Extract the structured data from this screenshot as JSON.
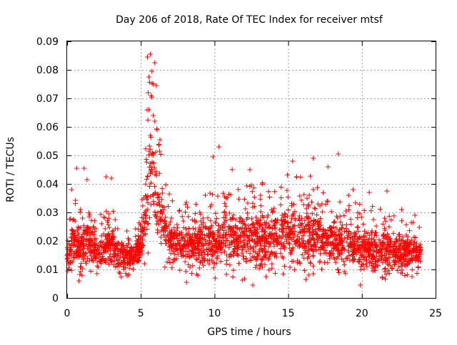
{
  "chart_data": {
    "type": "scatter",
    "title": "Day 206 of 2018, Rate Of TEC Index for receiver mtsf",
    "xlabel": "GPS time / hours",
    "ylabel": "ROTI / TECUs",
    "xlim": [
      0,
      25
    ],
    "ylim": [
      0,
      0.09
    ],
    "x_ticks": [
      "0",
      "5",
      "10",
      "15",
      "20",
      "25"
    ],
    "y_ticks": [
      "0",
      "0.01",
      "0.02",
      "0.03",
      "0.04",
      "0.05",
      "0.06",
      "0.07",
      "0.08",
      "0.09"
    ],
    "grid": true,
    "marker": "plus",
    "series": [
      {
        "color": "#ff0000",
        "envelope": [
          {
            "x": 0.0,
            "low": 0.009,
            "high": 0.024
          },
          {
            "x": 0.5,
            "low": 0.008,
            "high": 0.038
          },
          {
            "x": 1.0,
            "low": 0.007,
            "high": 0.03
          },
          {
            "x": 1.5,
            "low": 0.009,
            "high": 0.04
          },
          {
            "x": 2.0,
            "low": 0.008,
            "high": 0.026
          },
          {
            "x": 2.5,
            "low": 0.008,
            "high": 0.035
          },
          {
            "x": 3.0,
            "low": 0.008,
            "high": 0.033
          },
          {
            "x": 3.5,
            "low": 0.007,
            "high": 0.026
          },
          {
            "x": 4.0,
            "low": 0.007,
            "high": 0.024
          },
          {
            "x": 4.5,
            "low": 0.009,
            "high": 0.024
          },
          {
            "x": 5.0,
            "low": 0.01,
            "high": 0.03
          },
          {
            "x": 5.5,
            "low": 0.012,
            "high": 0.075
          },
          {
            "x": 5.8,
            "low": 0.018,
            "high": 0.085
          },
          {
            "x": 6.2,
            "low": 0.014,
            "high": 0.06
          },
          {
            "x": 6.7,
            "low": 0.01,
            "high": 0.04
          },
          {
            "x": 7.5,
            "low": 0.009,
            "high": 0.034
          },
          {
            "x": 8.5,
            "low": 0.008,
            "high": 0.034
          },
          {
            "x": 10.0,
            "low": 0.007,
            "high": 0.04
          },
          {
            "x": 11.5,
            "low": 0.007,
            "high": 0.04
          },
          {
            "x": 12.5,
            "low": 0.005,
            "high": 0.042
          },
          {
            "x": 13.5,
            "low": 0.007,
            "high": 0.04
          },
          {
            "x": 15.0,
            "low": 0.007,
            "high": 0.044
          },
          {
            "x": 16.0,
            "low": 0.008,
            "high": 0.044
          },
          {
            "x": 17.0,
            "low": 0.008,
            "high": 0.042
          },
          {
            "x": 18.0,
            "low": 0.009,
            "high": 0.036
          },
          {
            "x": 19.0,
            "low": 0.008,
            "high": 0.034
          },
          {
            "x": 20.0,
            "low": 0.007,
            "high": 0.034
          },
          {
            "x": 21.0,
            "low": 0.006,
            "high": 0.032
          },
          {
            "x": 22.0,
            "low": 0.007,
            "high": 0.03
          },
          {
            "x": 23.0,
            "low": 0.007,
            "high": 0.028
          },
          {
            "x": 24.0,
            "low": 0.008,
            "high": 0.028
          }
        ],
        "points": [
          [
            5.45,
            0.0845
          ],
          [
            5.65,
            0.0855
          ],
          [
            5.95,
            0.0825
          ],
          [
            5.75,
            0.0795
          ],
          [
            5.55,
            0.0775
          ],
          [
            5.85,
            0.075
          ],
          [
            6.05,
            0.0745
          ],
          [
            5.5,
            0.072
          ],
          [
            5.7,
            0.071
          ],
          [
            5.55,
            0.066
          ],
          [
            5.85,
            0.064
          ],
          [
            5.95,
            0.062
          ],
          [
            6.1,
            0.059
          ],
          [
            5.65,
            0.057
          ],
          [
            6.3,
            0.0555
          ],
          [
            10.3,
            0.053
          ],
          [
            9.9,
            0.0495
          ],
          [
            18.4,
            0.0505
          ],
          [
            16.7,
            0.049
          ],
          [
            15.3,
            0.048
          ],
          [
            17.7,
            0.046
          ],
          [
            1.15,
            0.0455
          ],
          [
            0.65,
            0.0455
          ],
          [
            11.2,
            0.045
          ],
          [
            12.4,
            0.045
          ],
          [
            2.65,
            0.0425
          ],
          [
            3.0,
            0.042
          ],
          [
            0.3,
            0.038
          ],
          [
            1.35,
            0.0415
          ],
          [
            21.7,
            0.0375
          ],
          [
            20.5,
            0.037
          ],
          [
            19.1,
            0.036
          ],
          [
            19.4,
            0.038
          ],
          [
            22.7,
            0.031
          ],
          [
            23.6,
            0.029
          ],
          [
            8.1,
            0.0055
          ],
          [
            12.6,
            0.0045
          ],
          [
            19.9,
            0.0045
          ],
          [
            21.4,
            0.007
          ],
          [
            0.8,
            0.006
          ],
          [
            23.4,
            0.0075
          ],
          [
            23.2,
            0.013
          ],
          [
            23.0,
            0.019
          ],
          [
            16.2,
            0.0065
          ]
        ]
      }
    ]
  }
}
